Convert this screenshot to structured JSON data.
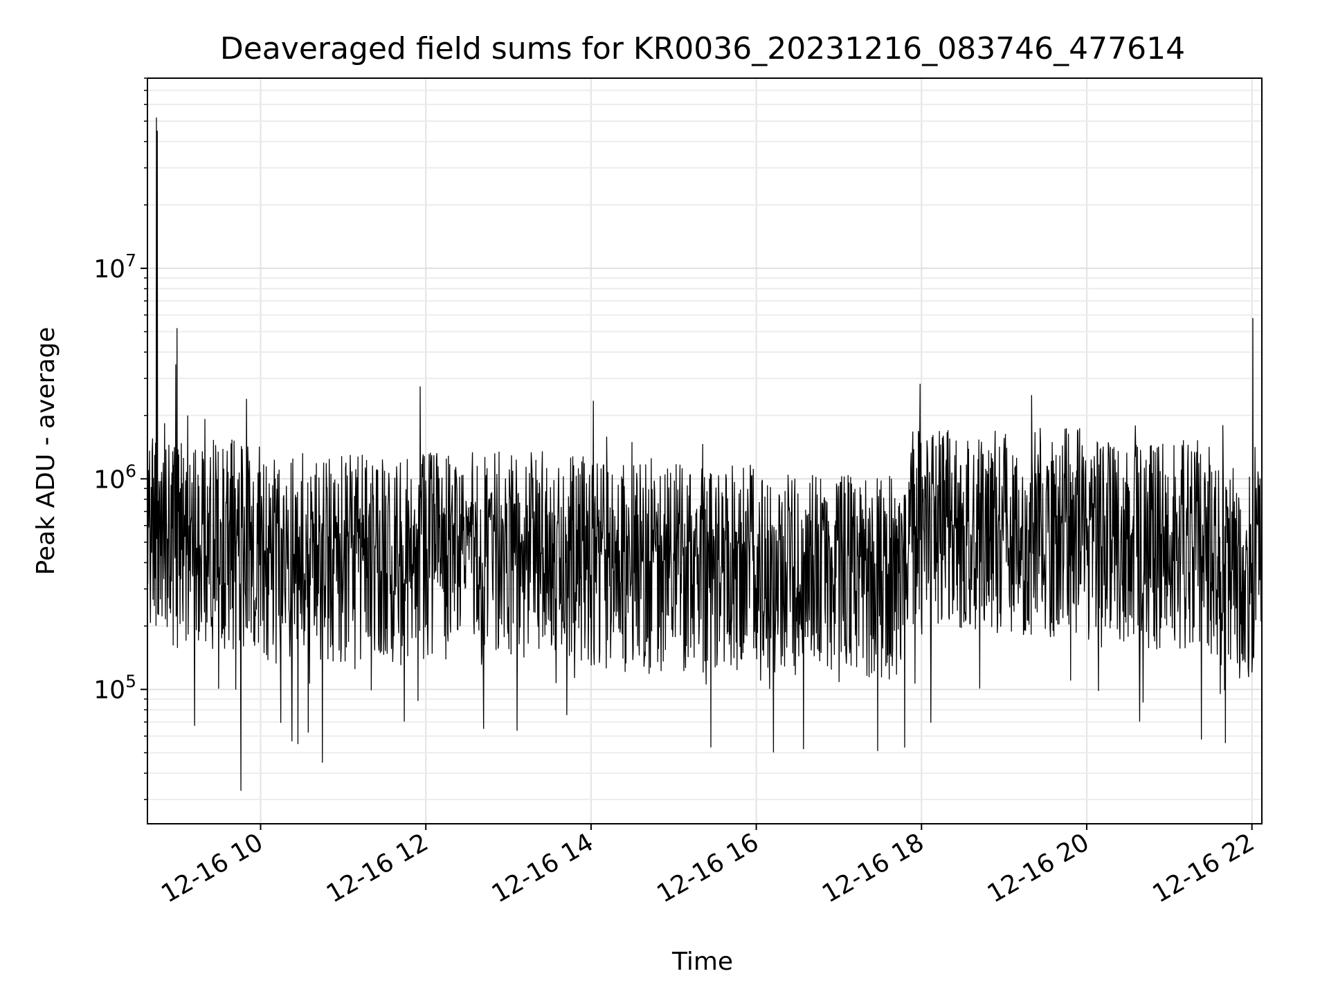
{
  "chart_data": {
    "type": "line",
    "title": "Deaveraged field sums for KR0036_20231216_083746_477614",
    "xlabel": "Time",
    "ylabel": "Peak ADU - average",
    "yscale": "log",
    "ylim": [
      23000,
      80000000
    ],
    "xlim_hours": [
      8.63,
      22.12
    ],
    "grid": true,
    "legend": "none",
    "line_color": "#000000",
    "x_ticks": [
      {
        "hour": 10,
        "label": "12-16 10"
      },
      {
        "hour": 12,
        "label": "12-16 12"
      },
      {
        "hour": 14,
        "label": "12-16 14"
      },
      {
        "hour": 16,
        "label": "12-16 16"
      },
      {
        "hour": 18,
        "label": "12-16 18"
      },
      {
        "hour": 20,
        "label": "12-16 20"
      },
      {
        "hour": 22,
        "label": "12-16 22"
      }
    ],
    "y_ticks": [
      {
        "value": 100000,
        "base": "10",
        "exp": "5"
      },
      {
        "value": 1000000,
        "base": "10",
        "exp": "6"
      },
      {
        "value": 10000000,
        "base": "10",
        "exp": "7"
      }
    ],
    "baseline_segments": [
      {
        "start_hour": 8.63,
        "end_hour": 8.9,
        "median": 700000
      },
      {
        "start_hour": 8.9,
        "end_hour": 10.0,
        "median": 550000
      },
      {
        "start_hour": 10.0,
        "end_hour": 12.0,
        "median": 470000
      },
      {
        "start_hour": 12.0,
        "end_hour": 14.0,
        "median": 480000
      },
      {
        "start_hour": 14.0,
        "end_hour": 16.0,
        "median": 420000
      },
      {
        "start_hour": 16.0,
        "end_hour": 17.8,
        "median": 380000
      },
      {
        "start_hour": 17.8,
        "end_hour": 20.0,
        "median": 620000
      },
      {
        "start_hour": 20.0,
        "end_hour": 21.5,
        "median": 550000
      },
      {
        "start_hour": 21.5,
        "end_hour": 22.12,
        "median": 400000
      }
    ],
    "notable_points": [
      {
        "hour": 8.74,
        "value": 52000000
      },
      {
        "hour": 8.75,
        "value": 45000000
      },
      {
        "hour": 8.97,
        "value": 3500000
      },
      {
        "hour": 8.99,
        "value": 5200000
      },
      {
        "hour": 9.12,
        "value": 2000000
      },
      {
        "hour": 9.76,
        "value": 33000
      },
      {
        "hour": 9.83,
        "value": 2400000
      },
      {
        "hour": 10.45,
        "value": 55000
      },
      {
        "hour": 11.93,
        "value": 2750000
      },
      {
        "hour": 12.7,
        "value": 65000
      },
      {
        "hour": 14.03,
        "value": 2350000
      },
      {
        "hour": 15.45,
        "value": 53000
      },
      {
        "hour": 16.57,
        "value": 52000
      },
      {
        "hour": 17.47,
        "value": 51000
      },
      {
        "hour": 21.65,
        "value": 1800000
      },
      {
        "hour": 22.01,
        "value": 5800000
      }
    ],
    "samples": 2600
  }
}
